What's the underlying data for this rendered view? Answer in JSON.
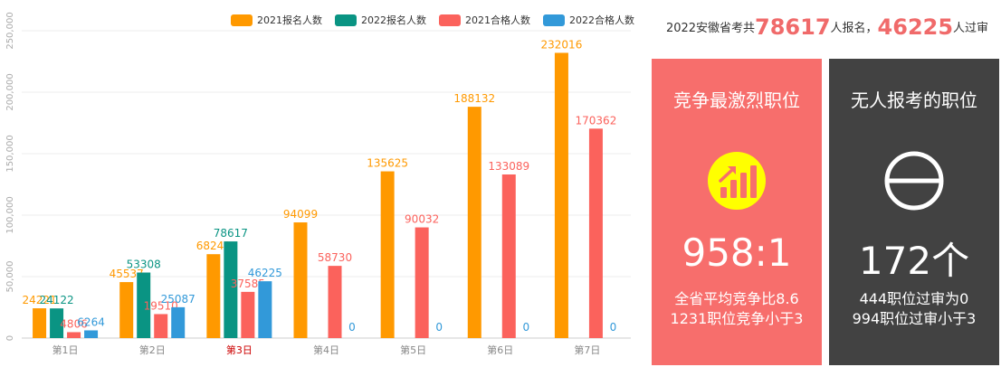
{
  "colors": {
    "s2021reg": "#ff9900",
    "s2022reg": "#0a9483",
    "s2021pass": "#fb625c",
    "s2022pass": "#3299d9",
    "red_card": "#f76e6c",
    "dark_card": "#424242"
  },
  "headline": {
    "prefix": "2022安徽省考共",
    "reg": "78617",
    "mid": "人报名，",
    "pass": "46225",
    "suffix": "人过审"
  },
  "cards": [
    {
      "title": "竞争最激烈职位",
      "icon": "chart-up-icon",
      "big": "958:1",
      "line1": "全省平均竞争比8.6",
      "line2": "1231职位竞争小于3"
    },
    {
      "title": "无人报考的职位",
      "icon": "empty-circle-icon",
      "big": "172个",
      "line1": "444职位过审为0",
      "line2": "994职位过审小于3"
    }
  ],
  "chart_data": {
    "type": "bar",
    "categories": [
      "第1日",
      "第2日",
      "第3日",
      "第4日",
      "第5日",
      "第6日",
      "第7日"
    ],
    "highlight_category": "第3日",
    "series": [
      {
        "name": "2021报名人数",
        "values": [
          24221,
          45537,
          68241,
          94099,
          135625,
          188132,
          232016
        ]
      },
      {
        "name": "2022报名人数",
        "values": [
          24122,
          53308,
          78617,
          null,
          null,
          null,
          null
        ]
      },
      {
        "name": "2021合格人数",
        "values": [
          4806,
          19510,
          37585,
          58730,
          90032,
          133089,
          170362
        ]
      },
      {
        "name": "2022合格人数",
        "values": [
          6264,
          25087,
          46225,
          0,
          0,
          0,
          0
        ]
      }
    ],
    "data_labels": [
      [
        "24221",
        "45537",
        "68241",
        "94099",
        "135625",
        "188132",
        "232016"
      ],
      [
        "24122",
        "53308",
        "78617",
        "",
        "",
        "",
        ""
      ],
      [
        "4806",
        "19510",
        "37585",
        "58730",
        "90032",
        "133089",
        "170362"
      ],
      [
        "6264",
        "25087",
        "46225",
        "0",
        "0",
        "0",
        "0"
      ]
    ],
    "yticks": [
      "0",
      "50,000",
      "100,000",
      "150,000",
      "200,000",
      "250,000"
    ],
    "ylim": [
      0,
      250000
    ],
    "grid": true,
    "legend_position": "top-right"
  }
}
